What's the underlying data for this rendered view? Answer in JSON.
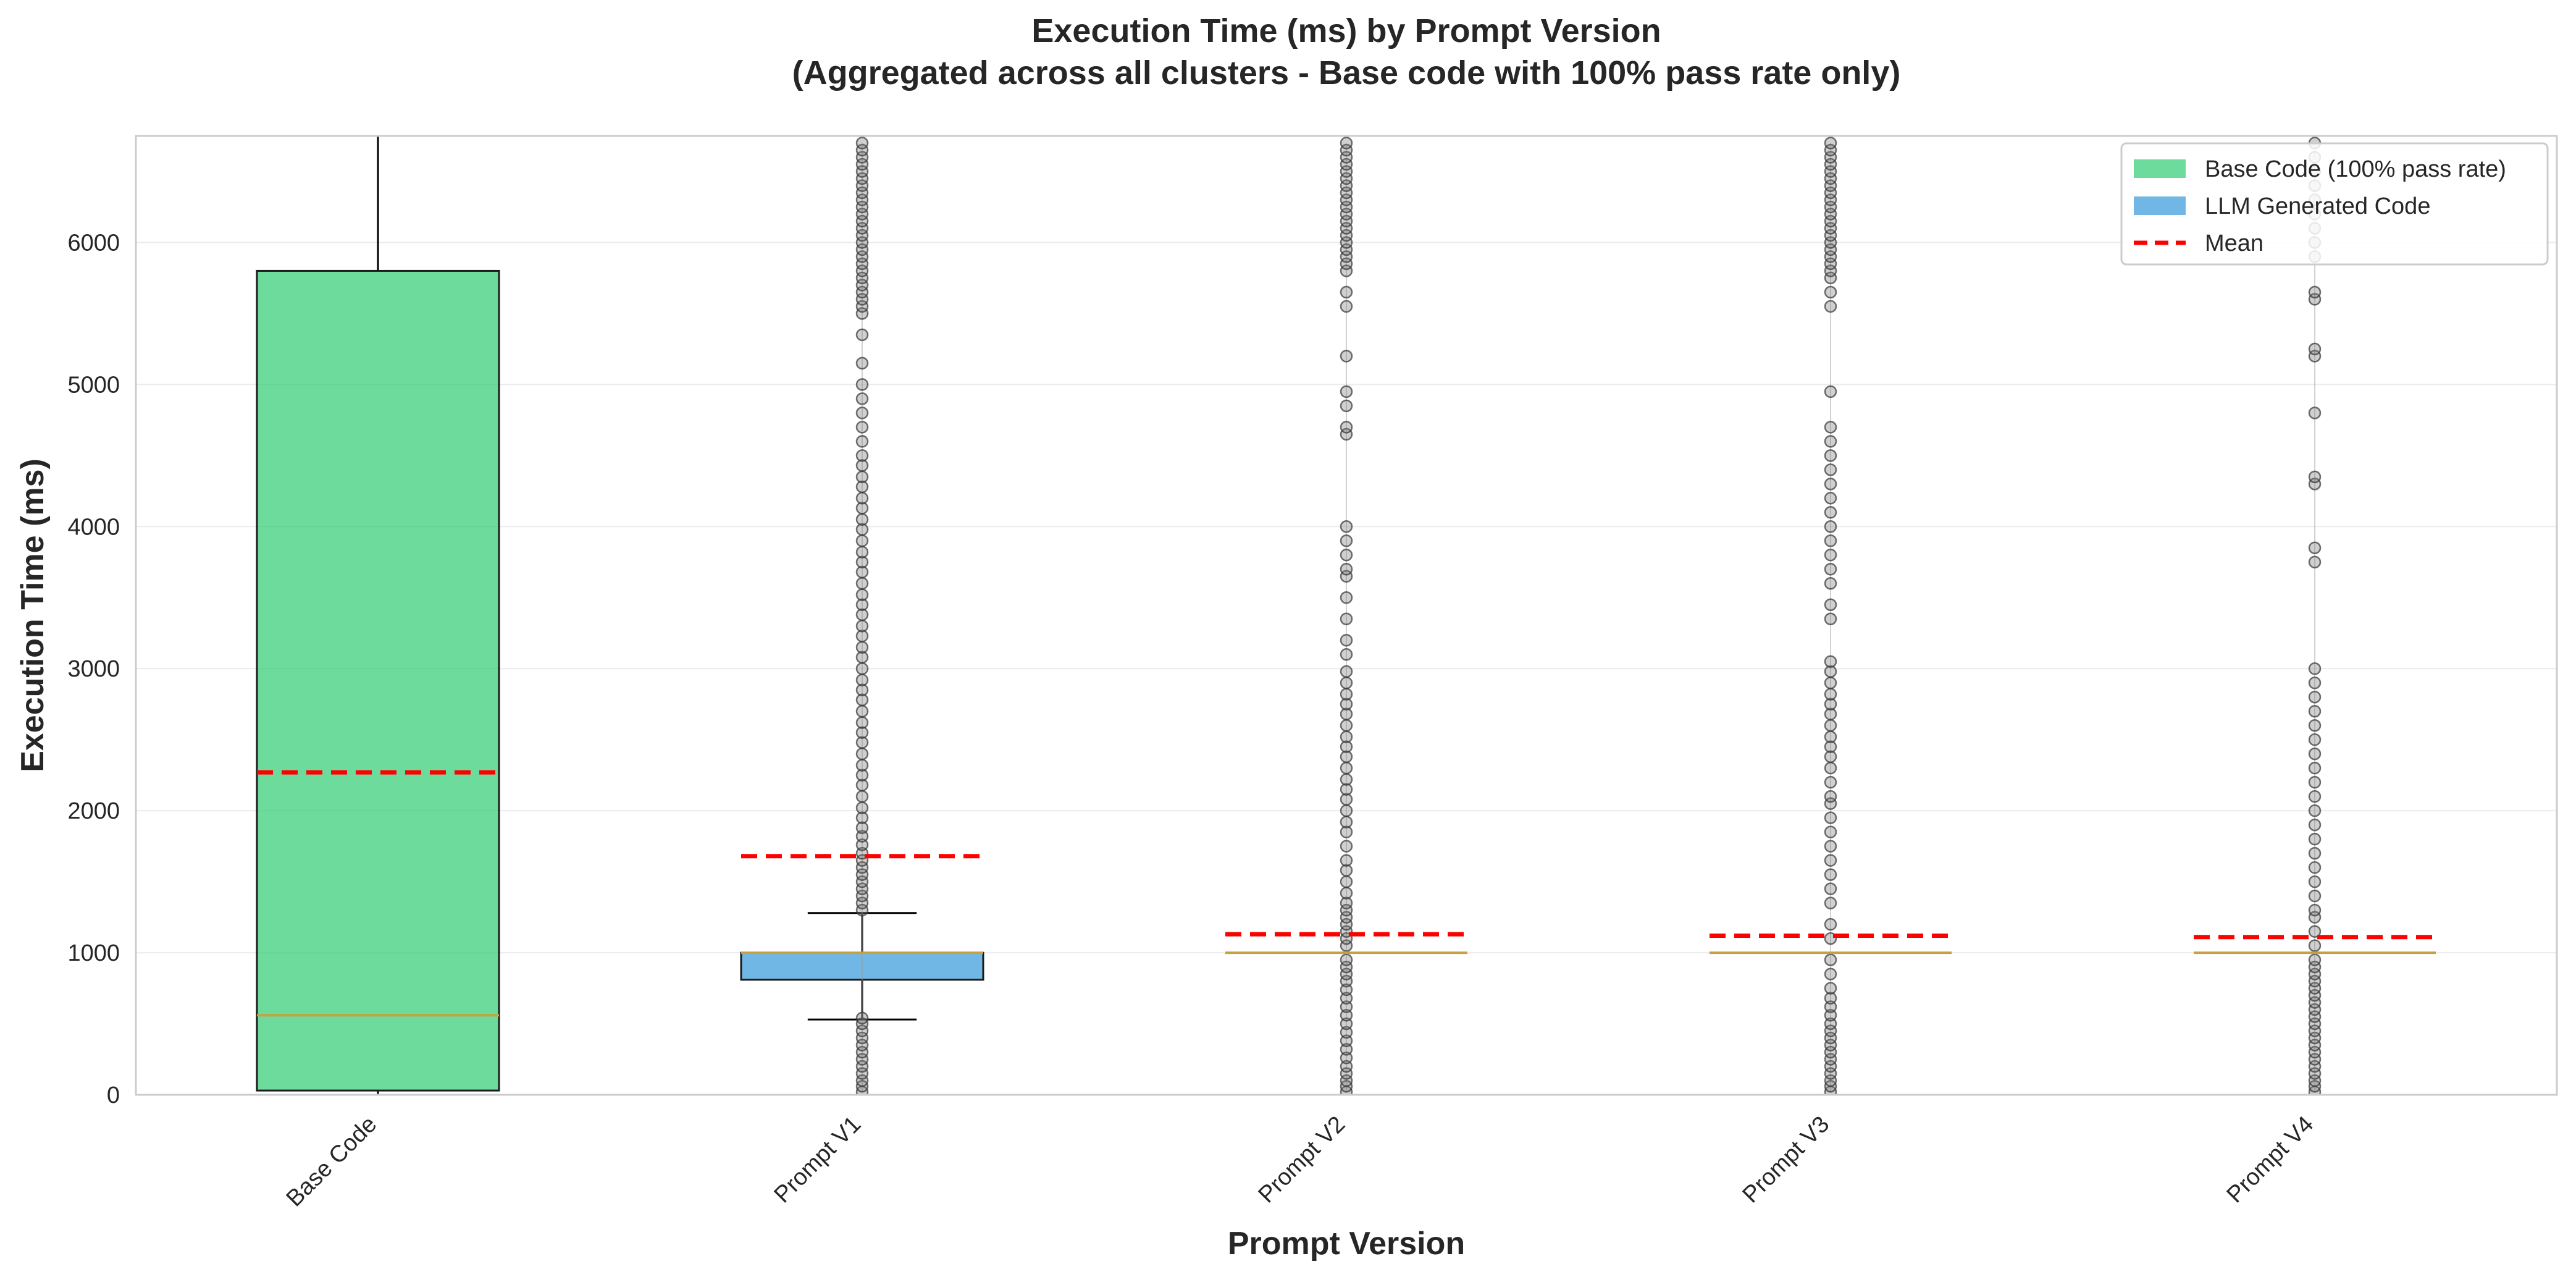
{
  "chart_data": {
    "type": "box",
    "title": "Execution Time (ms) by Prompt Version",
    "subtitle": "(Aggregated across all clusters - Base code with 100% pass rate only)",
    "xlabel": "Prompt Version",
    "ylabel": "Execution Time (ms)",
    "categories": [
      "Base Code",
      "Prompt V1",
      "Prompt V2",
      "Prompt V3",
      "Prompt V4"
    ],
    "ylim": [
      0,
      6750
    ],
    "yticks": [
      0,
      1000,
      2000,
      3000,
      4000,
      5000,
      6000
    ],
    "grid": "horizontal",
    "legend_position": "top-right",
    "legend": [
      {
        "label": "Base Code (100% pass rate)",
        "kind": "patch",
        "color": "#2ecc71"
      },
      {
        "label": "LLM Generated Code",
        "kind": "patch",
        "color": "#3498db"
      },
      {
        "label": "Mean",
        "kind": "dashed-line",
        "color": "#ff0000"
      }
    ],
    "colors": {
      "base_box": "#2ecc71",
      "llm_box": "#3498db",
      "median": "#c8a040",
      "mean": "#ff0000",
      "whisker": "#000000",
      "outlier": "#555555"
    },
    "boxes": [
      {
        "category": "Base Code",
        "group": "base",
        "whisker_low": 0,
        "q1": 30,
        "median": 560,
        "q3": 5800,
        "whisker_high": 6750,
        "mean": 2270
      },
      {
        "category": "Prompt V1",
        "group": "llm",
        "whisker_low": 530,
        "q1": 810,
        "median": 1000,
        "q3": 1000,
        "whisker_high": 1280,
        "mean": 1680
      },
      {
        "category": "Prompt V2",
        "group": "llm",
        "whisker_low": 1000,
        "q1": 1000,
        "median": 1000,
        "q3": 1000,
        "whisker_high": 1000,
        "mean": 1130
      },
      {
        "category": "Prompt V3",
        "group": "llm",
        "whisker_low": 1000,
        "q1": 1000,
        "median": 1000,
        "q3": 1000,
        "whisker_high": 1000,
        "mean": 1120
      },
      {
        "category": "Prompt V4",
        "group": "llm",
        "whisker_low": 1000,
        "q1": 1000,
        "median": 1000,
        "q3": 1000,
        "whisker_high": 1000,
        "mean": 1110
      }
    ],
    "outliers": [
      {
        "category": "Prompt V1",
        "values": [
          20,
          60,
          100,
          150,
          200,
          250,
          300,
          350,
          400,
          450,
          500,
          540,
          1300,
          1350,
          1400,
          1450,
          1500,
          1550,
          1600,
          1650,
          1700,
          1760,
          1820,
          1880,
          1950,
          2020,
          2100,
          2180,
          2250,
          2320,
          2400,
          2480,
          2550,
          2620,
          2700,
          2780,
          2850,
          2920,
          3000,
          3080,
          3150,
          3230,
          3300,
          3380,
          3450,
          3520,
          3600,
          3680,
          3750,
          3820,
          3900,
          3980,
          4050,
          4130,
          4200,
          4280,
          4350,
          4430,
          4500,
          4600,
          4700,
          4800,
          4900,
          5000,
          5150,
          5350,
          5500,
          5550,
          5600,
          5650,
          5700,
          5750,
          5800,
          5850,
          5900,
          5950,
          6000,
          6050,
          6100,
          6150,
          6200,
          6250,
          6300,
          6350,
          6400,
          6450,
          6500,
          6550,
          6600,
          6650,
          6700
        ]
      },
      {
        "category": "Prompt V2",
        "values": [
          20,
          60,
          100,
          150,
          200,
          260,
          320,
          380,
          440,
          500,
          560,
          620,
          680,
          740,
          800,
          850,
          900,
          950,
          1050,
          1100,
          1150,
          1200,
          1250,
          1300,
          1350,
          1420,
          1500,
          1580,
          1650,
          1750,
          1850,
          1920,
          2000,
          2080,
          2150,
          2220,
          2300,
          2380,
          2450,
          2520,
          2600,
          2680,
          2750,
          2820,
          2900,
          2980,
          3100,
          3200,
          3350,
          3500,
          3650,
          3700,
          3800,
          3900,
          4000,
          4650,
          4700,
          4850,
          4950,
          5200,
          5550,
          5650,
          5800,
          5850,
          5900,
          5950,
          6000,
          6050,
          6100,
          6150,
          6200,
          6250,
          6300,
          6350,
          6400,
          6450,
          6500,
          6550,
          6600,
          6650,
          6700
        ]
      },
      {
        "category": "Prompt V3",
        "values": [
          20,
          60,
          100,
          150,
          200,
          250,
          300,
          350,
          400,
          450,
          500,
          560,
          620,
          680,
          750,
          850,
          950,
          1100,
          1200,
          1350,
          1450,
          1550,
          1650,
          1750,
          1850,
          1950,
          2050,
          2100,
          2200,
          2300,
          2380,
          2450,
          2520,
          2600,
          2680,
          2750,
          2820,
          2900,
          2980,
          3050,
          3350,
          3450,
          3600,
          3700,
          3800,
          3900,
          4000,
          4100,
          4200,
          4300,
          4400,
          4500,
          4600,
          4700,
          4950,
          5550,
          5650,
          5750,
          5800,
          5850,
          5900,
          5950,
          6000,
          6050,
          6100,
          6150,
          6200,
          6250,
          6300,
          6350,
          6400,
          6450,
          6500,
          6550,
          6600,
          6650,
          6700
        ]
      },
      {
        "category": "Prompt V4",
        "values": [
          20,
          60,
          100,
          150,
          200,
          250,
          300,
          350,
          400,
          450,
          500,
          550,
          600,
          650,
          700,
          750,
          800,
          850,
          900,
          950,
          1050,
          1150,
          1250,
          1300,
          1400,
          1500,
          1600,
          1700,
          1800,
          1900,
          2000,
          2100,
          2200,
          2300,
          2400,
          2500,
          2600,
          2700,
          2800,
          2900,
          3000,
          3750,
          3850,
          4300,
          4350,
          4800,
          5200,
          5250,
          5600,
          5650,
          5900,
          6000,
          6100,
          6200,
          6300,
          6400,
          6500,
          6600,
          6700
        ]
      }
    ]
  }
}
